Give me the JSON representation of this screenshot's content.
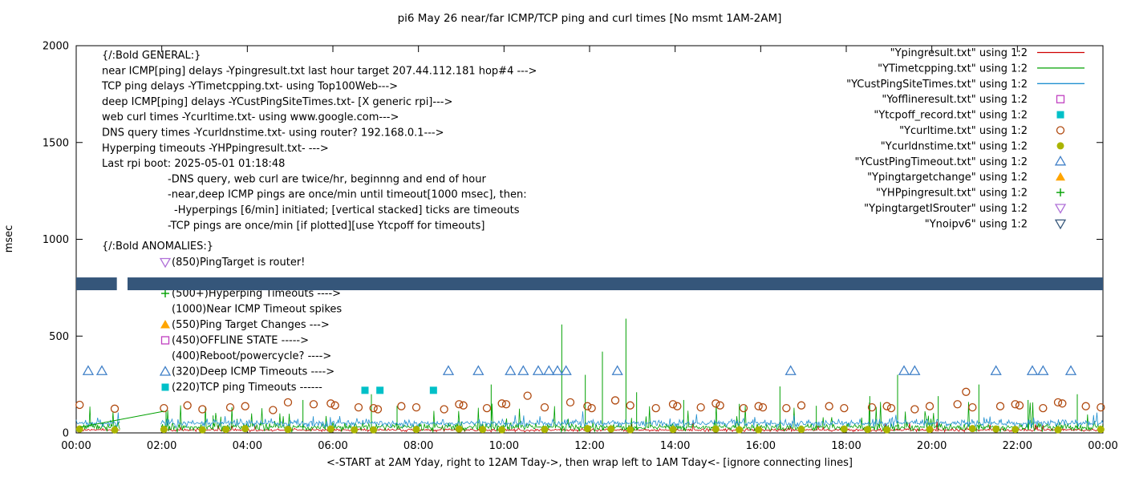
{
  "chart_data": {
    "type": "line+scatter time series (gnuplot)",
    "title": "pi6 May 26  near/far ICMP/TCP ping and curl times [No msmt 1AM-2AM]",
    "ylabel": "msec",
    "xlabel": "<-START at 2AM Yday, right to 12AM Tday->, then wrap left to 1AM Tday<- [ignore connecting lines]",
    "xlim": [
      0,
      24
    ],
    "ylim": [
      0,
      2000
    ],
    "yticks": [
      0,
      500,
      1000,
      1500,
      2000
    ],
    "xtick_labels": [
      "00:00",
      "02:00",
      "04:00",
      "06:00",
      "08:00",
      "10:00",
      "12:00",
      "14:00",
      "16:00",
      "18:00",
      "20:00",
      "22:00",
      "00:00"
    ],
    "no_msmt_gap": [
      1.0,
      2.0
    ],
    "legend_position": "top-right-inside",
    "grid": false,
    "approx_note": "baseline lines are dense noisy once/min series; drawn from base/amp parameters estimated off the pixels",
    "connector": {
      "series": "YTimetcpping.txt",
      "color": "#00a000",
      "from": [
        0.1,
        30
      ],
      "to": [
        2.05,
        112
      ]
    },
    "series": [
      {
        "name": "Ypingresult.txt",
        "legend_label": "\"Ypingresult.txt\" using 1:2",
        "style": "line",
        "color": "#d00000",
        "baseline": {
          "base": 15,
          "amp": 10,
          "spike": 40,
          "spike_prob": 0.02,
          "seed": 101,
          "approx": true
        }
      },
      {
        "name": "YTimetcpping.txt",
        "legend_label": "\"YTimetcpping.txt\" using 1:2",
        "style": "line",
        "color": "#00a000",
        "baseline": {
          "base": 30,
          "amp": 28,
          "spike": 130,
          "spike_prob": 0.06,
          "seed": 202,
          "approx": true
        },
        "spikes": [
          [
            2.1,
            110
          ],
          [
            3.2,
            90
          ],
          [
            5.3,
            170
          ],
          [
            6.9,
            200
          ],
          [
            7.5,
            140
          ],
          [
            9.7,
            250
          ],
          [
            11.35,
            560
          ],
          [
            11.9,
            300
          ],
          [
            12.3,
            420
          ],
          [
            12.85,
            590
          ],
          [
            13.1,
            210
          ],
          [
            14.2,
            170
          ],
          [
            15.5,
            150
          ],
          [
            16.45,
            240
          ],
          [
            17.3,
            140
          ],
          [
            18.55,
            190
          ],
          [
            19.2,
            300
          ],
          [
            20.15,
            190
          ],
          [
            21.1,
            250
          ],
          [
            22.25,
            170
          ],
          [
            23.4,
            200
          ]
        ]
      },
      {
        "name": "YCustPingSiteTimes.txt",
        "legend_label": "\"YCustPingSiteTimes.txt\" using 1:2",
        "style": "line",
        "color": "#2090d0",
        "baseline": {
          "base": 50,
          "amp": 26,
          "spike": 50,
          "spike_prob": 0.03,
          "seed": 303,
          "approx": true
        }
      },
      {
        "name": "Yofflineresult.txt",
        "legend_label": "\"Yofflineresult.txt\" using 1:2",
        "style": "open-square",
        "color": "#c040c0",
        "points": []
      },
      {
        "name": "Ytcpoff_record.txt",
        "legend_label": "\"Ytcpoff_record.txt\" using 1:2",
        "style": "filled-square",
        "color": "#00c0c8",
        "points": [
          [
            6.75,
            220
          ],
          [
            7.1,
            220
          ],
          [
            8.35,
            220
          ]
        ]
      },
      {
        "name": "Ycurltime.txt",
        "legend_label": "\"Ycurltime.txt\" using 1:2",
        "style": "open-circle",
        "color": "#b04a10",
        "points": [
          [
            0.08,
            145
          ],
          [
            0.9,
            125
          ],
          [
            2.05,
            128
          ],
          [
            2.6,
            142
          ],
          [
            2.95,
            122
          ],
          [
            3.6,
            132
          ],
          [
            3.95,
            138
          ],
          [
            4.6,
            118
          ],
          [
            4.95,
            158
          ],
          [
            5.55,
            148
          ],
          [
            5.95,
            152
          ],
          [
            6.05,
            142
          ],
          [
            6.6,
            132
          ],
          [
            6.95,
            128
          ],
          [
            7.05,
            122
          ],
          [
            7.6,
            138
          ],
          [
            7.95,
            132
          ],
          [
            8.6,
            122
          ],
          [
            8.95,
            148
          ],
          [
            9.05,
            142
          ],
          [
            9.6,
            128
          ],
          [
            9.95,
            152
          ],
          [
            10.05,
            148
          ],
          [
            10.55,
            192
          ],
          [
            10.95,
            132
          ],
          [
            11.55,
            158
          ],
          [
            11.95,
            138
          ],
          [
            12.05,
            128
          ],
          [
            12.6,
            168
          ],
          [
            12.95,
            142
          ],
          [
            13.55,
            128
          ],
          [
            13.95,
            148
          ],
          [
            14.05,
            138
          ],
          [
            14.6,
            132
          ],
          [
            14.95,
            152
          ],
          [
            15.05,
            142
          ],
          [
            15.6,
            128
          ],
          [
            15.95,
            138
          ],
          [
            16.05,
            132
          ],
          [
            16.6,
            128
          ],
          [
            16.95,
            142
          ],
          [
            17.6,
            138
          ],
          [
            17.95,
            128
          ],
          [
            18.6,
            132
          ],
          [
            18.95,
            138
          ],
          [
            19.05,
            128
          ],
          [
            19.6,
            122
          ],
          [
            19.95,
            138
          ],
          [
            20.6,
            148
          ],
          [
            20.8,
            212
          ],
          [
            20.95,
            132
          ],
          [
            21.6,
            138
          ],
          [
            21.95,
            148
          ],
          [
            22.05,
            142
          ],
          [
            22.6,
            128
          ],
          [
            22.95,
            158
          ],
          [
            23.05,
            152
          ],
          [
            23.6,
            138
          ],
          [
            23.95,
            132
          ]
        ]
      },
      {
        "name": "Ycurldnstime.txt",
        "legend_label": "\"Ycurldnstime.txt\" using 1:2",
        "style": "filled-circle",
        "color": "#aab400",
        "points": [
          [
            0.08,
            20
          ],
          [
            0.9,
            15
          ],
          [
            2.05,
            18
          ],
          [
            2.95,
            16
          ],
          [
            3.5,
            18
          ],
          [
            3.95,
            22
          ],
          [
            4.95,
            18
          ],
          [
            5.95,
            20
          ],
          [
            6.5,
            16
          ],
          [
            6.95,
            16
          ],
          [
            7.95,
            18
          ],
          [
            8.95,
            20
          ],
          [
            9.5,
            18
          ],
          [
            9.95,
            16
          ],
          [
            10.95,
            18
          ],
          [
            11.95,
            22
          ],
          [
            12.5,
            20
          ],
          [
            12.95,
            16
          ],
          [
            13.95,
            18
          ],
          [
            14.95,
            20
          ],
          [
            15.5,
            16
          ],
          [
            15.95,
            16
          ],
          [
            16.95,
            18
          ],
          [
            17.95,
            20
          ],
          [
            18.5,
            18
          ],
          [
            18.95,
            16
          ],
          [
            19.95,
            18
          ],
          [
            20.95,
            22
          ],
          [
            21.5,
            20
          ],
          [
            21.95,
            18
          ],
          [
            22.95,
            16
          ],
          [
            23.95,
            18
          ]
        ]
      },
      {
        "name": "YCustPingTimeout.txt",
        "legend_label": "\"YCustPingTimeout.txt\" using 1:2",
        "style": "open-triangle-up",
        "color": "#4080c8",
        "points": [
          [
            0.28,
            320
          ],
          [
            0.6,
            320
          ],
          [
            8.7,
            320
          ],
          [
            9.4,
            320
          ],
          [
            10.15,
            320
          ],
          [
            10.45,
            320
          ],
          [
            10.8,
            320
          ],
          [
            11.05,
            320
          ],
          [
            11.25,
            320
          ],
          [
            11.45,
            320
          ],
          [
            12.65,
            320
          ],
          [
            16.7,
            320
          ],
          [
            19.35,
            320
          ],
          [
            19.6,
            320
          ],
          [
            21.5,
            320
          ],
          [
            22.35,
            320
          ],
          [
            22.6,
            320
          ],
          [
            23.25,
            320
          ]
        ]
      },
      {
        "name": "Ypingtargetchange",
        "legend_label": "\"Ypingtargetchange\" using 1:2",
        "style": "filled-triangle-up",
        "color": "#ffa500",
        "points": []
      },
      {
        "name": "YHPpingresult.txt",
        "legend_label": "\"YHPpingresult.txt\" using 1:2",
        "style": "plus",
        "color": "#00a000",
        "points": []
      },
      {
        "name": "YpingtargetISrouter",
        "legend_label": "\"YpingtargetISrouter\" using 1:2",
        "style": "open-triangle-down",
        "color": "#b070d8",
        "points": []
      },
      {
        "name": "Ynoipv6",
        "legend_label": "\"Ynoipv6\" using 1:2",
        "style": "open-triangle-down",
        "color": "#35567a",
        "band": {
          "value": 770,
          "from": 0,
          "to": 24,
          "gap": [
            0.95,
            1.2
          ],
          "thickness_msec": 66
        }
      }
    ]
  },
  "annotations": {
    "general": [
      {
        "indent": 0,
        "text": "{/:Bold GENERAL:}"
      },
      {
        "indent": 0,
        "text": "near ICMP[ping] delays -Ypingresult.txt last hour target 207.44.112.181 hop#4 --->"
      },
      {
        "indent": 0,
        "text": "TCP ping delays -YTimetcpping.txt- using Top100Web--->"
      },
      {
        "indent": 0,
        "text": "deep ICMP[ping] delays -YCustPingSiteTimes.txt- [X generic rpi]--->"
      },
      {
        "indent": 0,
        "text": "web curl times -Ycurltime.txt- using www.google.com--->"
      },
      {
        "indent": 0,
        "text": "DNS query times -Ycurldnstime.txt- using router? 192.168.0.1--->"
      },
      {
        "indent": 0,
        "text": "Hyperping timeouts -YHPpingresult.txt- --->"
      },
      {
        "indent": 0,
        "text": "Last rpi boot: 2025-05-01 01:18:48"
      },
      {
        "indent": 1,
        "text": "-DNS query, web curl are twice/hr, beginnng and end of hour"
      },
      {
        "indent": 1,
        "text": "-near,deep ICMP pings are once/min until timeout[1000 msec], then:"
      },
      {
        "indent": 2,
        "text": "-Hyperpings [6/min] initiated; [vertical stacked] ticks are timeouts"
      },
      {
        "indent": 1,
        "text": "-TCP pings are once/min [if plotted][use Ytcpoff for timeouts]"
      }
    ],
    "anomalies_header": "{/:Bold ANOMALIES:}",
    "anomalies": [
      {
        "marker": "open-triangle-down",
        "color": "#b070d8",
        "text": "(850)PingTarget is router!"
      },
      {
        "marker": "plus",
        "color": "#00a000",
        "text": "(500+)Hyperping Timeouts ---->"
      },
      {
        "marker": null,
        "color": null,
        "text": "(1000)Near ICMP Timeout spikes"
      },
      {
        "marker": "filled-triangle-up",
        "color": "#ffa500",
        "text": "(550)Ping Target Changes --->"
      },
      {
        "marker": "open-square",
        "color": "#c040c0",
        "text": "(450)OFFLINE STATE ----->"
      },
      {
        "marker": null,
        "color": null,
        "text": "(400)Reboot/powercycle? ---->"
      },
      {
        "marker": "open-triangle-up",
        "color": "#4080c8",
        "text": "(320)Deep ICMP Timeouts ---->"
      },
      {
        "marker": "filled-square",
        "color": "#00c0c8",
        "text": "(220)TCP ping Timeouts ------"
      }
    ]
  }
}
